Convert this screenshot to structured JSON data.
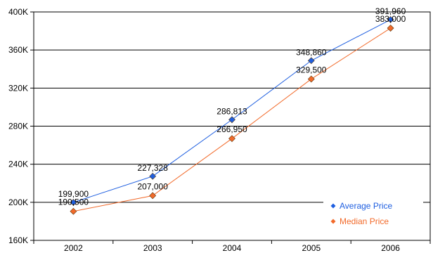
{
  "chart_data": {
    "type": "line",
    "title": "",
    "xlabel": "",
    "ylabel": "",
    "categories": [
      "2002",
      "2003",
      "2004",
      "2005",
      "2006"
    ],
    "ylim": [
      160000,
      400000
    ],
    "yticks": [
      160000,
      200000,
      240000,
      280000,
      320000,
      360000,
      400000
    ],
    "ytick_labels": [
      "160K",
      "200K",
      "240K",
      "280K",
      "320K",
      "360K",
      "400K"
    ],
    "grid": "horizontal",
    "legend_position": "bottom-right",
    "series": [
      {
        "name": "Average Price",
        "color": "#1f5fe0",
        "marker": "diamond",
        "values": [
          199900,
          227328,
          286813,
          348860,
          391960
        ],
        "labels": [
          "199,900",
          "227,328",
          "286,813",
          "348,860",
          "391,960"
        ]
      },
      {
        "name": "Median Price",
        "color": "#f26a2a",
        "marker": "diamond",
        "values": [
          190500,
          207000,
          266950,
          329500,
          383000
        ],
        "labels": [
          "190,500",
          "207,000",
          "266,950",
          "329,500",
          "383,000"
        ]
      }
    ]
  }
}
